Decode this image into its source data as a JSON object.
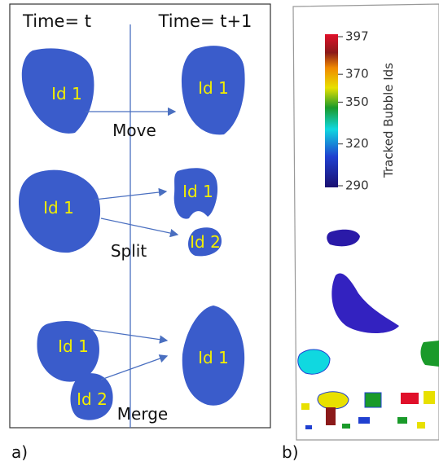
{
  "panel_a": {
    "label": "a)",
    "headers": [
      "Time= t",
      "Time= t+1"
    ],
    "rows": [
      {
        "event": "Move",
        "before": [
          "Id 1"
        ],
        "after": [
          "Id 1"
        ]
      },
      {
        "event": "Split",
        "before": [
          "Id 1"
        ],
        "after": [
          "Id 1",
          "Id 2"
        ]
      },
      {
        "event": "Merge",
        "before": [
          "Id 1",
          "Id 2"
        ],
        "after": [
          "Id 1"
        ]
      }
    ]
  },
  "panel_b": {
    "label": "b)",
    "colorbar": {
      "title": "Tracked Bubble Ids",
      "ticks": [
        397,
        370,
        350,
        320,
        290
      ]
    }
  }
}
